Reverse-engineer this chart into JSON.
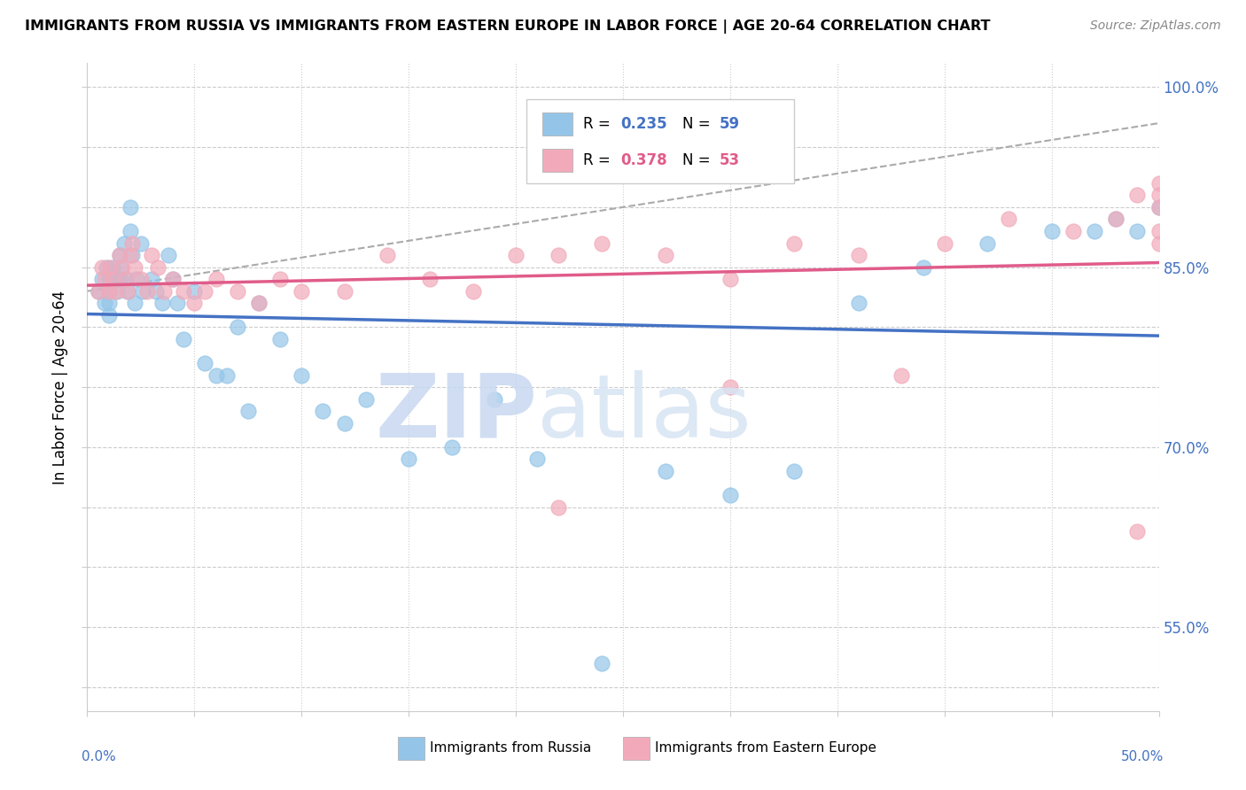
{
  "title": "IMMIGRANTS FROM RUSSIA VS IMMIGRANTS FROM EASTERN EUROPE IN LABOR FORCE | AGE 20-64 CORRELATION CHART",
  "source": "Source: ZipAtlas.com",
  "ylabel": "In Labor Force | Age 20-64",
  "xlim": [
    0.0,
    0.5
  ],
  "ylim": [
    0.48,
    1.02
  ],
  "ytick_vals": [
    0.5,
    0.55,
    0.6,
    0.65,
    0.7,
    0.75,
    0.8,
    0.85,
    0.9,
    0.95,
    1.0
  ],
  "ytick_labels_right": [
    "",
    "55.0%",
    "",
    "",
    "70.0%",
    "",
    "",
    "85.0%",
    "",
    "",
    "100.0%"
  ],
  "color_russia": "#94C5E8",
  "color_eastern": "#F2AABA",
  "color_russia_line": "#4472C4",
  "color_eastern_line": "#E05C8A",
  "color_dashed_line": "#AAAAAA",
  "color_grid": "#CCCCCC",
  "color_axis_label": "#4472C4",
  "russia_scatter_x": [
    0.005,
    0.007,
    0.008,
    0.009,
    0.01,
    0.01,
    0.01,
    0.01,
    0.012,
    0.013,
    0.014,
    0.015,
    0.015,
    0.016,
    0.017,
    0.018,
    0.019,
    0.02,
    0.02,
    0.021,
    0.022,
    0.023,
    0.025,
    0.026,
    0.03,
    0.032,
    0.035,
    0.038,
    0.04,
    0.042,
    0.045,
    0.05,
    0.055,
    0.06,
    0.065,
    0.07,
    0.075,
    0.08,
    0.09,
    0.1,
    0.11,
    0.12,
    0.13,
    0.15,
    0.17,
    0.19,
    0.21,
    0.24,
    0.27,
    0.3,
    0.33,
    0.36,
    0.39,
    0.42,
    0.45,
    0.47,
    0.48,
    0.49,
    0.5
  ],
  "russia_scatter_y": [
    0.83,
    0.84,
    0.82,
    0.85,
    0.84,
    0.83,
    0.82,
    0.81,
    0.85,
    0.84,
    0.83,
    0.86,
    0.84,
    0.85,
    0.87,
    0.84,
    0.83,
    0.88,
    0.9,
    0.86,
    0.82,
    0.84,
    0.87,
    0.83,
    0.84,
    0.83,
    0.82,
    0.86,
    0.84,
    0.82,
    0.79,
    0.83,
    0.77,
    0.76,
    0.76,
    0.8,
    0.73,
    0.82,
    0.79,
    0.76,
    0.73,
    0.72,
    0.74,
    0.69,
    0.7,
    0.74,
    0.69,
    0.52,
    0.68,
    0.66,
    0.68,
    0.82,
    0.85,
    0.87,
    0.88,
    0.88,
    0.89,
    0.88,
    0.9
  ],
  "eastern_scatter_x": [
    0.005,
    0.007,
    0.008,
    0.01,
    0.01,
    0.012,
    0.013,
    0.015,
    0.016,
    0.018,
    0.019,
    0.02,
    0.021,
    0.022,
    0.025,
    0.028,
    0.03,
    0.033,
    0.036,
    0.04,
    0.045,
    0.05,
    0.055,
    0.06,
    0.07,
    0.08,
    0.09,
    0.1,
    0.12,
    0.14,
    0.16,
    0.18,
    0.2,
    0.22,
    0.24,
    0.27,
    0.3,
    0.33,
    0.36,
    0.4,
    0.43,
    0.46,
    0.48,
    0.49,
    0.5,
    0.5,
    0.5,
    0.5,
    0.5,
    0.49,
    0.22,
    0.38,
    0.3
  ],
  "eastern_scatter_y": [
    0.83,
    0.85,
    0.84,
    0.85,
    0.83,
    0.84,
    0.83,
    0.86,
    0.85,
    0.84,
    0.83,
    0.86,
    0.87,
    0.85,
    0.84,
    0.83,
    0.86,
    0.85,
    0.83,
    0.84,
    0.83,
    0.82,
    0.83,
    0.84,
    0.83,
    0.82,
    0.84,
    0.83,
    0.83,
    0.86,
    0.84,
    0.83,
    0.86,
    0.86,
    0.87,
    0.86,
    0.84,
    0.87,
    0.86,
    0.87,
    0.89,
    0.88,
    0.89,
    0.91,
    0.92,
    0.9,
    0.88,
    0.87,
    0.91,
    0.63,
    0.65,
    0.76,
    0.75
  ]
}
